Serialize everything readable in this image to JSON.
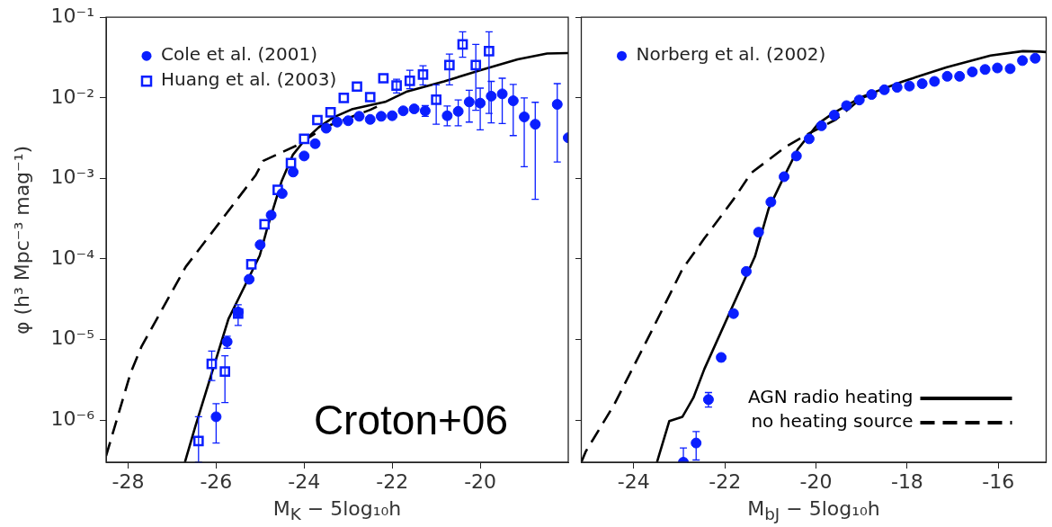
{
  "chart_data": [
    {
      "type": "scatter",
      "xlabel": "M$_{K}$ − 5log₁₀h",
      "ylabel": "φ (h³ Mpc⁻³ mag⁻¹)",
      "xlim": [
        -28.5,
        -18
      ],
      "xticks": [
        -28,
        -26,
        -24,
        -22,
        -20
      ],
      "ylim": [
        3e-07,
        0.1
      ],
      "yticks": [
        {
          "value": 1e-06,
          "label": "10⁻⁶"
        },
        {
          "value": 1e-05,
          "label": "10⁻⁵"
        },
        {
          "value": 0.0001,
          "label": "10⁻⁴"
        },
        {
          "value": 0.001,
          "label": "10⁻³"
        },
        {
          "value": 0.01,
          "label": "10⁻²"
        },
        {
          "value": 0.1,
          "label": "10⁻¹"
        }
      ],
      "log": "y",
      "grid": false,
      "legend": "top left",
      "annotations": [
        "Croton+06"
      ],
      "series": [
        {
          "type": "scatter",
          "name": "Cole et al. (2001)",
          "color": "#0a1eff",
          "marker": "circle",
          "x": [
            -26.0,
            -25.75,
            -25.5,
            -25.25,
            -25.0,
            -24.75,
            -24.5,
            -24.25,
            -24.0,
            -23.75,
            -23.5,
            -23.25,
            -23.0,
            -22.75,
            -22.5,
            -22.25,
            -22.0,
            -21.75,
            -21.5,
            -21.25,
            -20.75,
            -20.5,
            -20.25,
            -20.0,
            -19.75,
            -19.5,
            -19.25,
            -19.0,
            -18.75,
            -18.25,
            -18.0
          ],
          "values": [
            1.1e-06,
            9.4e-06,
            2.2e-05,
            5.6e-05,
            0.00015,
            0.00035,
            0.00065,
            0.0012,
            0.0019,
            0.0027,
            0.0042,
            0.005,
            0.0052,
            0.0059,
            0.0054,
            0.0059,
            0.006,
            0.0069,
            0.0073,
            0.0069,
            0.006,
            0.0068,
            0.0089,
            0.0086,
            0.0105,
            0.0112,
            0.0092,
            0.0058,
            0.0047,
            0.0083,
            0.0032
          ],
          "errors": [
            [
              5.2e-07,
              1.6e-06
            ],
            [
              7.8e-06,
              1.1e-05
            ],
            null,
            null,
            null,
            null,
            null,
            null,
            null,
            null,
            null,
            null,
            null,
            null,
            null,
            null,
            null,
            null,
            null,
            [
              0.0059,
              0.008
            ],
            [
              0.0045,
              0.0079
            ],
            [
              0.0045,
              0.0094
            ],
            [
              0.005,
              0.0124
            ],
            [
              0.004,
              0.0132
            ],
            [
              0.0049,
              0.016
            ],
            [
              0.0048,
              0.0175
            ],
            [
              0.0034,
              0.0147
            ],
            [
              0.0014,
              0.01
            ],
            [
              0.00055,
              0.0088
            ],
            [
              0.0016,
              0.015
            ],
            null
          ]
        },
        {
          "type": "scatter",
          "name": "Huang et al. (2003)",
          "color": "#0a1eff",
          "marker": "square",
          "x": [
            -26.4,
            -26.1,
            -25.8,
            -25.5,
            -25.2,
            -24.9,
            -24.6,
            -24.3,
            -24.0,
            -23.7,
            -23.4,
            -23.1,
            -22.8,
            -22.5,
            -22.2,
            -21.9,
            -21.6,
            -21.3,
            -21.0,
            -20.7,
            -20.4,
            -20.1,
            -19.8
          ],
          "values": [
            5.5e-07,
            5e-06,
            4e-06,
            2.1e-05,
            8.6e-05,
            0.00027,
            0.00072,
            0.00155,
            0.0031,
            0.0053,
            0.0066,
            0.01,
            0.0138,
            0.0102,
            0.0175,
            0.0142,
            0.0163,
            0.0195,
            0.0095,
            0.0255,
            0.046,
            0.0255,
            0.038
          ],
          "errors": [
            [
              3e-07,
              1.1e-06
            ],
            [
              3.1e-06,
              7.2e-06
            ],
            [
              1.65e-06,
              6.3e-06
            ],
            [
              1.5e-05,
              2.7e-05
            ],
            null,
            null,
            null,
            null,
            null,
            null,
            null,
            null,
            null,
            null,
            null,
            [
              0.0115,
              0.017
            ],
            [
              0.013,
              0.022
            ],
            [
              0.0145,
              0.025
            ],
            [
              0.0047,
              0.0145
            ],
            [
              0.0145,
              0.035
            ],
            [
              0.032,
              0.066
            ],
            [
              0.007,
              0.046
            ],
            [
              0.0064,
              0.066
            ]
          ]
        },
        {
          "type": "line",
          "color": "#000000",
          "line_style": "solid",
          "marker": "none",
          "x": [
            -26.71,
            -26.48,
            -25.72,
            -25.01,
            -24.84,
            -24.51,
            -24.26,
            -24.01,
            -23.67,
            -23.34,
            -22.92,
            -22.16,
            -21.66,
            -20.82,
            -19.99,
            -19.15,
            -18.48,
            -18.0
          ],
          "values": [
            3e-07,
            8.1e-07,
            1.8e-05,
            0.00011,
            0.00024,
            0.00093,
            0.00195,
            0.0029,
            0.0043,
            0.0057,
            0.0072,
            0.0089,
            0.012,
            0.016,
            0.022,
            0.03,
            0.0355,
            0.036
          ]
        },
        {
          "type": "line",
          "color": "#000000",
          "line_style": "dashed",
          "marker": "none",
          "x": [
            -28.5,
            -27.94,
            -27.69,
            -26.69,
            -25.1,
            -24.93,
            -24.18,
            -23.5,
            -22.5,
            -22.2
          ],
          "values": [
            3.6e-07,
            3.9e-06,
            8.3e-06,
            8e-05,
            0.0011,
            0.00165,
            0.00255,
            0.0044,
            0.0071,
            0.0085
          ]
        }
      ]
    },
    {
      "type": "scatter",
      "xlabel": "M$_{bJ}$ − 5log₁₀h",
      "xlim": [
        -25.15,
        -14.95
      ],
      "xticks": [
        -24,
        -22,
        -20,
        -18,
        -16
      ],
      "ylim": [
        3e-07,
        0.1
      ],
      "yticks": [
        {
          "value": 1e-06,
          "label": null
        },
        {
          "value": 1e-05,
          "label": null
        },
        {
          "value": 0.0001,
          "label": null
        },
        {
          "value": 0.001,
          "label": null
        },
        {
          "value": 0.01,
          "label": null
        },
        {
          "value": 0.1,
          "label": null
        }
      ],
      "log": "y",
      "grid": false,
      "legend": "top left",
      "tick_labels": "x",
      "series": [
        {
          "type": "scatter",
          "name": "Norberg et al. (2002)",
          "color": "#0a1eff",
          "marker": "circle",
          "x": [
            -22.91,
            -22.63,
            -22.36,
            -22.08,
            -21.81,
            -21.53,
            -21.26,
            -20.99,
            -20.7,
            -20.43,
            -20.15,
            -19.88,
            -19.6,
            -19.33,
            -19.05,
            -18.78,
            -18.5,
            -18.22,
            -17.95,
            -17.67,
            -17.4,
            -17.12,
            -16.85,
            -16.57,
            -16.29,
            -16.02,
            -15.74,
            -15.47,
            -15.19
          ],
          "values": [
            3e-07,
            5.2e-07,
            1.8e-06,
            6e-06,
            2.1e-05,
            7e-05,
            0.000215,
            0.00051,
            0.00105,
            0.0019,
            0.0031,
            0.0045,
            0.0061,
            0.008,
            0.0094,
            0.011,
            0.0126,
            0.0135,
            0.014,
            0.015,
            0.016,
            0.0185,
            0.0185,
            0.021,
            0.0225,
            0.0235,
            0.023,
            0.029,
            0.031
          ],
          "errors": [
            [
              3e-07,
              4.5e-07
            ],
            [
              3.2e-07,
              7.2e-07
            ],
            [
              1.45e-06,
              2.2e-06
            ],
            [
              5.4e-06,
              6.5e-06
            ],
            null,
            null,
            null,
            null,
            null,
            null,
            null,
            null,
            null,
            null,
            null,
            null,
            null,
            null,
            null,
            null,
            null,
            null,
            null,
            null,
            null,
            null,
            null,
            null,
            null
          ]
        },
        {
          "type": "line",
          "name": "AGN radio heating",
          "color": "#000000",
          "line_style": "solid",
          "marker": "none",
          "x": [
            -23.49,
            -23.22,
            -22.93,
            -22.69,
            -22.45,
            -21.34,
            -21.04,
            -20.72,
            -20.4,
            -19.95,
            -19.63,
            -18.99,
            -18.09,
            -17.13,
            -16.17,
            -15.46,
            -15.09,
            -14.95
          ],
          "values": [
            3e-07,
            9.7e-07,
            1.1e-06,
            1.9e-06,
            4.3e-06,
            0.000107,
            0.00042,
            0.001,
            0.0023,
            0.0048,
            0.0064,
            0.0103,
            0.016,
            0.024,
            0.0335,
            0.038,
            0.0375,
            0.037
          ]
        },
        {
          "type": "line",
          "name": "no heating source",
          "color": "#000000",
          "line_style": "dashed",
          "marker": "none",
          "x": [
            -25.15,
            -25.05,
            -24.43,
            -23.6,
            -22.93,
            -22.45,
            -21.81,
            -21.42,
            -20.65,
            -20.2,
            -19.56,
            -18.99,
            -18.47
          ],
          "values": [
            3e-07,
            4.1e-07,
            1.55e-06,
            1.3e-05,
            7.5e-05,
            0.00018,
            0.00055,
            0.00117,
            0.0025,
            0.0035,
            0.0054,
            0.01,
            0.0125
          ]
        }
      ]
    }
  ]
}
